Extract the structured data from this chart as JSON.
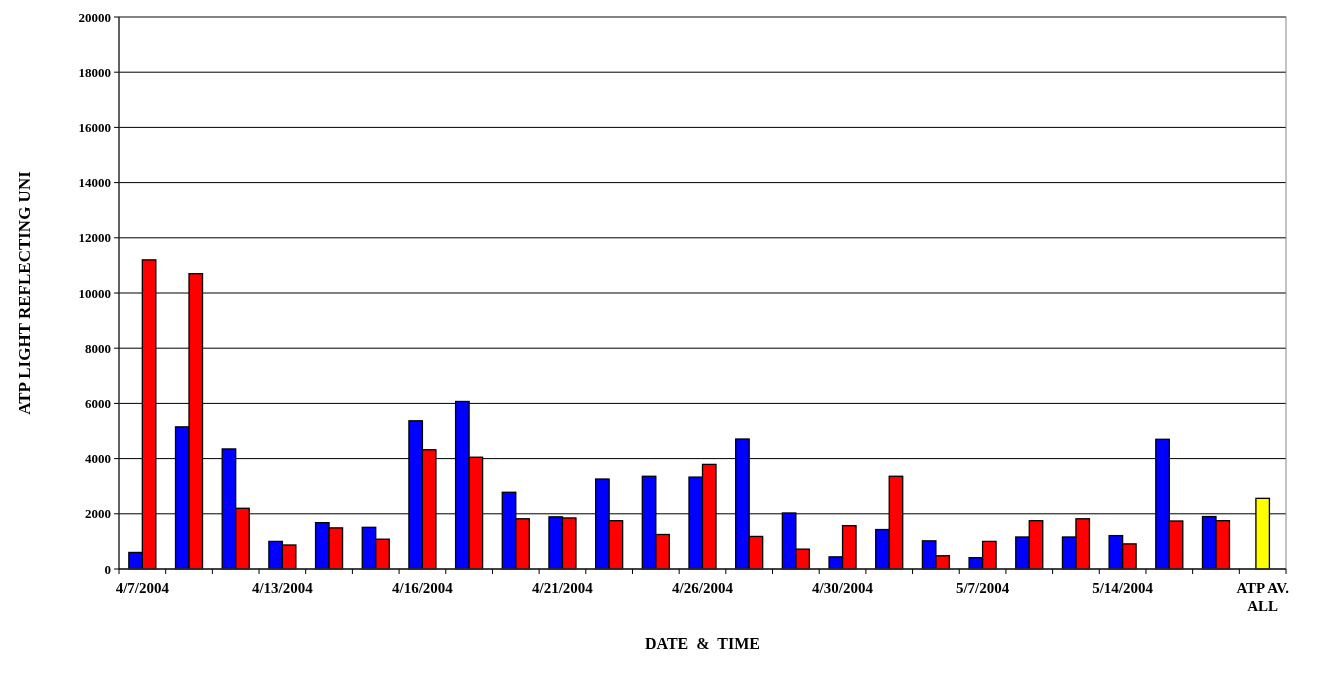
{
  "chart_data": {
    "type": "bar",
    "xlabel": "DATE  &  TIME",
    "ylabel": "ATP LIGHT REFLECTING UNI",
    "categories": [
      "4/7/2004",
      null,
      null,
      "4/13/2004",
      null,
      null,
      "4/16/2004",
      null,
      null,
      "4/21/2004",
      null,
      null,
      "4/26/2004",
      null,
      null,
      "4/30/2004",
      null,
      null,
      "5/7/2004",
      null,
      null,
      "5/14/2004",
      null,
      null,
      "ATP AV. ALL"
    ],
    "series": [
      {
        "color": "#0000ff",
        "values": [
          600,
          5150,
          4350,
          1000,
          1680,
          1510,
          5370,
          6070,
          2780,
          1890,
          3260,
          3360,
          3330,
          4710,
          2030,
          440,
          1430,
          1020,
          410,
          1160,
          1160,
          1210,
          4700,
          1900,
          null
        ]
      },
      {
        "color": "#ff0000",
        "values": [
          11200,
          10700,
          2200,
          870,
          1490,
          1080,
          4320,
          4050,
          1820,
          1850,
          1750,
          1250,
          3790,
          1180,
          720,
          1570,
          3360,
          480,
          1000,
          1750,
          1820,
          910,
          1740,
          1750,
          null
        ]
      },
      {
        "color": "#ffff00",
        "values": [
          null,
          null,
          null,
          null,
          null,
          null,
          null,
          null,
          null,
          null,
          null,
          null,
          null,
          null,
          null,
          null,
          null,
          null,
          null,
          null,
          null,
          null,
          null,
          null,
          2560
        ]
      }
    ],
    "ylim": [
      0,
      20000
    ],
    "yticks": [
      0,
      2000,
      4000,
      6000,
      8000,
      10000,
      12000,
      14000,
      16000,
      18000,
      20000
    ],
    "grid": "y"
  }
}
